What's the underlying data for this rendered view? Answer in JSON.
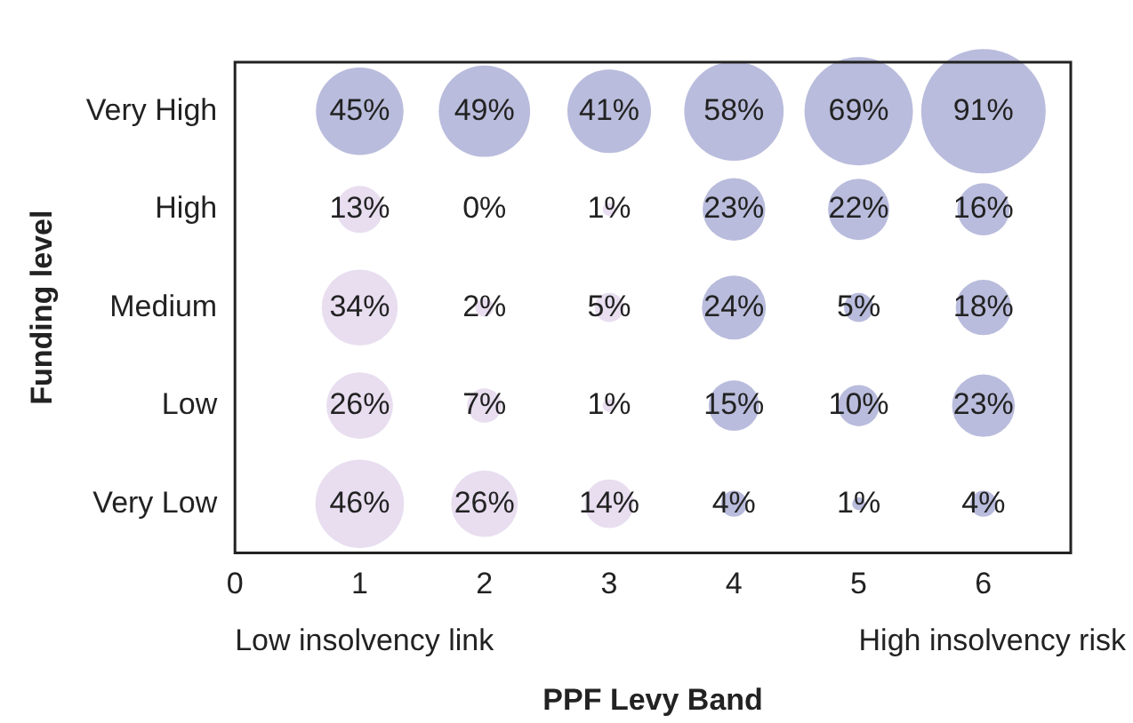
{
  "chart_data": {
    "type": "bubble",
    "orientation": "horizontal",
    "xlabel": "PPF Levy Band",
    "ylabel": "Funding level",
    "xlim": [
      0,
      6.7
    ],
    "xticks": [
      0,
      1,
      2,
      3,
      4,
      5,
      6
    ],
    "grid": false,
    "legend": false,
    "categories": [
      "Very High",
      "High",
      "Medium",
      "Low",
      "Very Low"
    ],
    "annotations": [
      "Low insolvency link",
      "High insolvency risk"
    ],
    "series": [
      {
        "values": [
          1,
          1,
          1,
          1,
          1
        ],
        "sizes": [
          45,
          13,
          34,
          26,
          46
        ],
        "value_labels": [
          "45%",
          "13%",
          "34%",
          "26%",
          "46%"
        ],
        "colors": [
          "#b9bcdc",
          "#e8def0",
          "#e8def0",
          "#e8def0",
          "#e8def0"
        ]
      },
      {
        "values": [
          2,
          null,
          2,
          2,
          2
        ],
        "sizes": [
          49,
          null,
          2,
          7,
          26
        ],
        "value_labels": [
          "49%",
          "0%",
          "2%",
          "7%",
          "26%"
        ],
        "colors": [
          "#b9bcdc",
          "#e8def0",
          "#e8def0",
          "#e8def0",
          "#e8def0"
        ]
      },
      {
        "values": [
          3,
          3,
          3,
          3,
          3
        ],
        "sizes": [
          41,
          1,
          5,
          1,
          14
        ],
        "value_labels": [
          "41%",
          "1%",
          "5%",
          "1%",
          "14%"
        ],
        "colors": [
          "#b9bcdc",
          "#e8def0",
          "#e8def0",
          "#e8def0",
          "#e8def0"
        ]
      },
      {
        "values": [
          4,
          4,
          4,
          4,
          4
        ],
        "sizes": [
          58,
          23,
          24,
          15,
          4
        ],
        "value_labels": [
          "58%",
          "23%",
          "24%",
          "15%",
          "4%"
        ],
        "colors": [
          "#b9bcdc",
          "#b9bcdc",
          "#b9bcdc",
          "#b9bcdc",
          "#b9bcdc"
        ]
      },
      {
        "values": [
          5,
          5,
          5,
          5,
          5
        ],
        "sizes": [
          69,
          22,
          5,
          10,
          1
        ],
        "value_labels": [
          "69%",
          "22%",
          "5%",
          "10%",
          "1%"
        ],
        "colors": [
          "#b9bcdc",
          "#b9bcdc",
          "#b9bcdc",
          "#b9bcdc",
          "#b9bcdc"
        ]
      },
      {
        "values": [
          6,
          6,
          6,
          6,
          6
        ],
        "sizes": [
          91,
          16,
          18,
          23,
          4
        ],
        "value_labels": [
          "91%",
          "16%",
          "18%",
          "23%",
          "4%"
        ],
        "colors": [
          "#b9bcdc",
          "#b9bcdc",
          "#b9bcdc",
          "#b9bcdc",
          "#b9bcdc"
        ]
      }
    ]
  }
}
